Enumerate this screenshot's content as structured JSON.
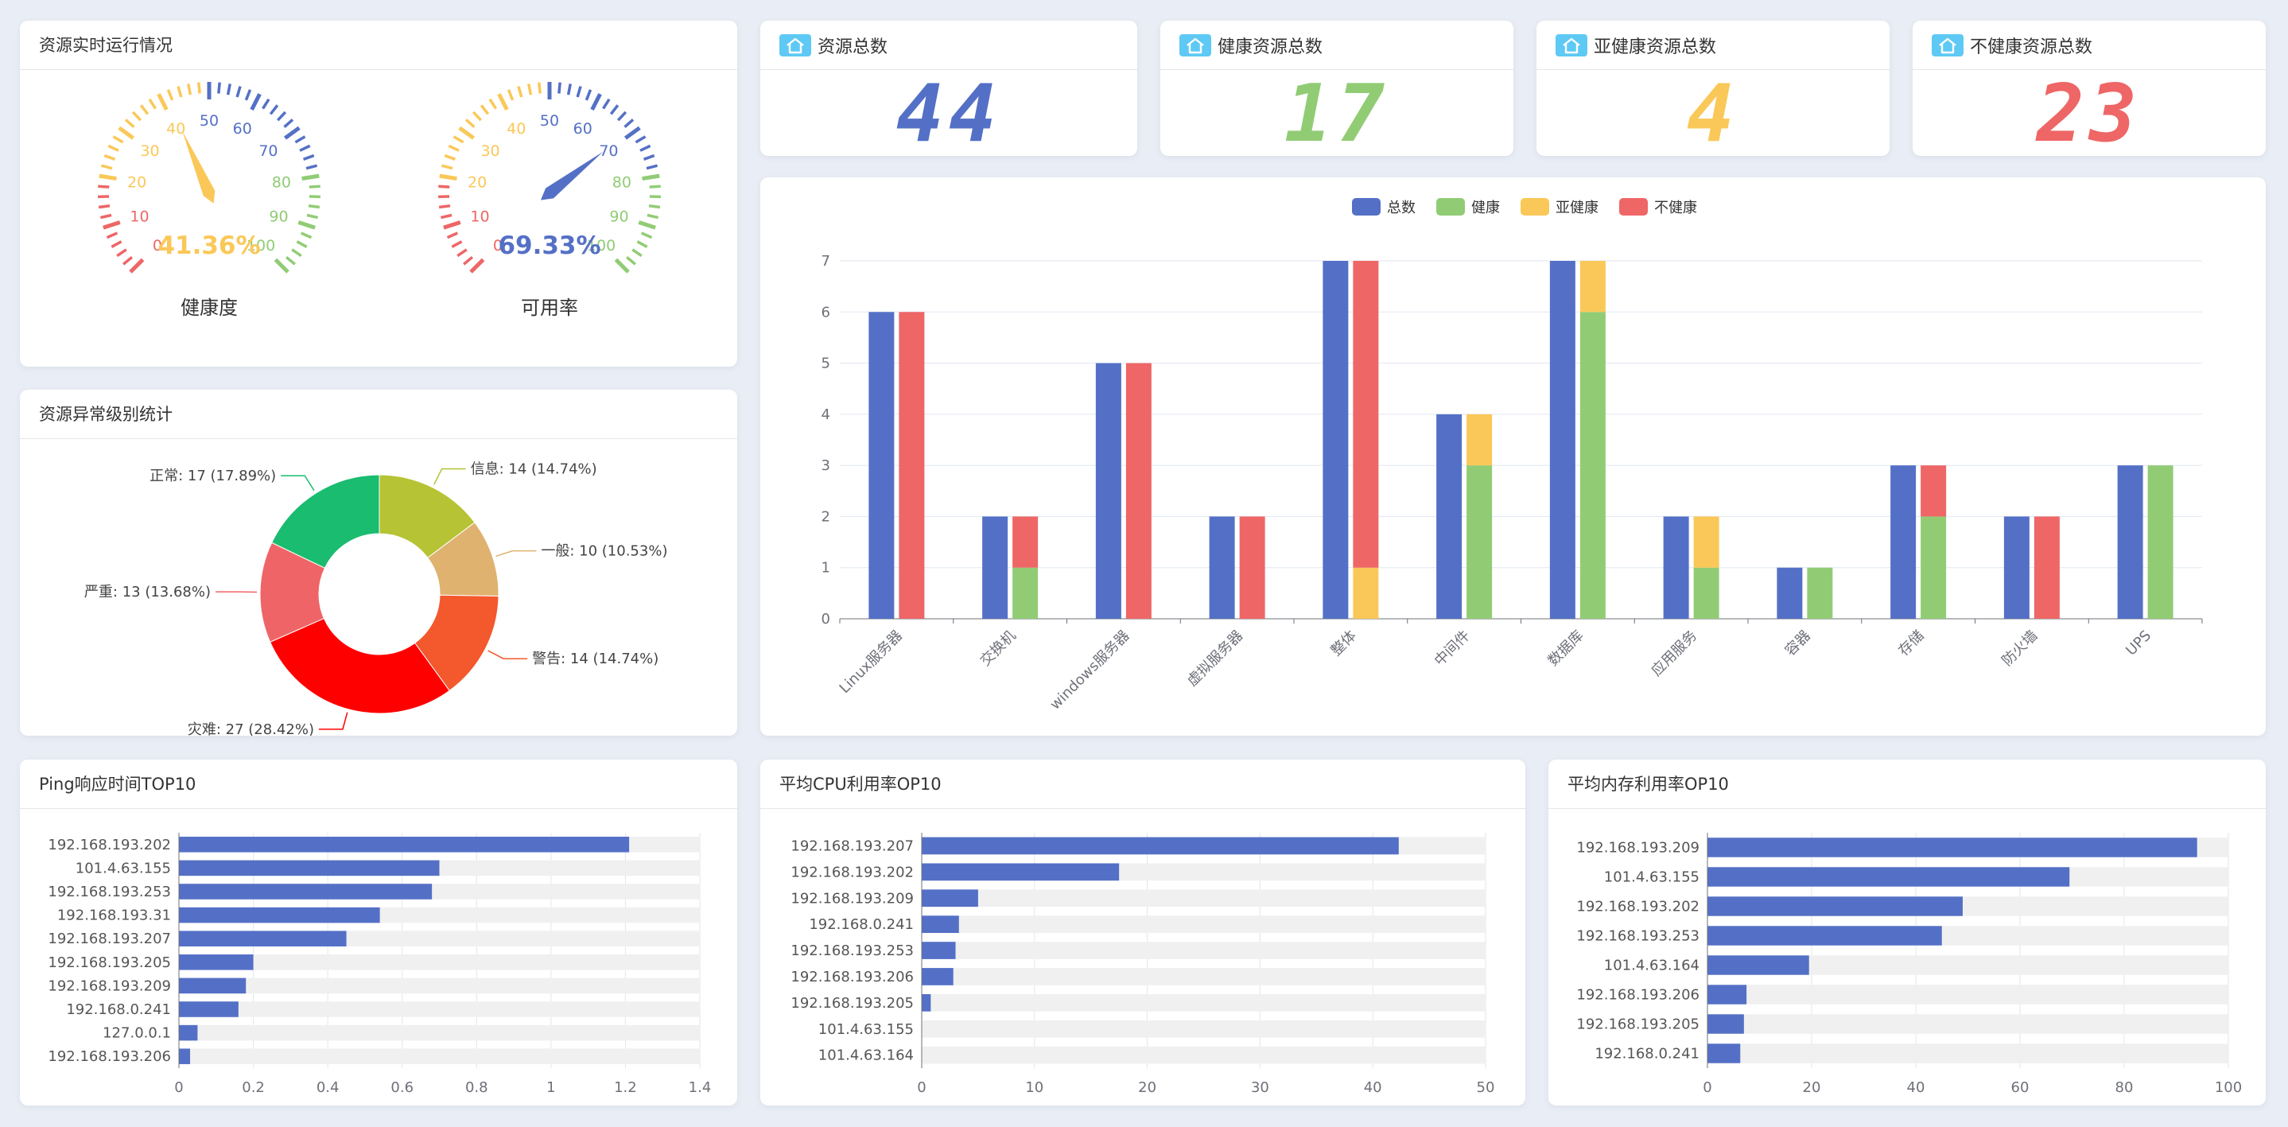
{
  "panels": {
    "realtime_title": "资源实时运行情况",
    "level_title": "资源异常级别统计",
    "ping_title": "Ping响应时间TOP10",
    "cpu_title": "平均CPU利用率OP10",
    "mem_title": "平均内存利用率OP10"
  },
  "stats": [
    {
      "label": "资源总数",
      "value": "44",
      "color": "#5470c6"
    },
    {
      "label": "健康资源总数",
      "value": "17",
      "color": "#91cc75"
    },
    {
      "label": "亚健康资源总数",
      "value": "4",
      "color": "#fac858"
    },
    {
      "label": "不健康资源总数",
      "value": "23",
      "color": "#ee6666"
    }
  ],
  "gauges": [
    {
      "label": "健康度",
      "value": 41.36,
      "display": "41.36%",
      "color": "#fac858"
    },
    {
      "label": "可用率",
      "value": 69.33,
      "display": "69.33%",
      "color": "#5470c6"
    }
  ],
  "gauge_ticks": [
    "0",
    "10",
    "20",
    "30",
    "40",
    "50",
    "60",
    "70",
    "80",
    "90",
    "100"
  ],
  "colors": {
    "blue": "#5470c6",
    "green": "#91cc75",
    "yellow": "#fac858",
    "red": "#ee6666",
    "track": "#f0f0f0"
  },
  "chart_data": [
    {
      "type": "pie",
      "title": "资源异常级别统计",
      "slices": [
        {
          "name": "信息",
          "value": 14,
          "label": "信息: 14 (14.74%)",
          "color": "#b5c334"
        },
        {
          "name": "一般",
          "value": 10,
          "label": "一般: 10 (10.53%)",
          "color": "#e0b26f"
        },
        {
          "name": "警告",
          "value": 14,
          "label": "警告: 14 (14.74%)",
          "color": "#f4582d"
        },
        {
          "name": "灾难",
          "value": 27,
          "label": "灾难: 27 (28.42%)",
          "color": "#ff0000"
        },
        {
          "name": "严重",
          "value": 13,
          "label": "严重: 13 (13.68%)",
          "color": "#ef6567"
        },
        {
          "name": "正常",
          "value": 17,
          "label": "正常: 17 (17.89%)",
          "color": "#1abc6f"
        }
      ]
    },
    {
      "type": "bar",
      "categories": [
        "Linux服务器",
        "交换机",
        "windows服务器",
        "虚拟服务器",
        "整体",
        "中间件",
        "数据库",
        "应用服务",
        "容器",
        "存储",
        "防火墙",
        "UPS"
      ],
      "legend": [
        "总数",
        "健康",
        "亚健康",
        "不健康"
      ],
      "series": [
        {
          "name": "总数",
          "values": [
            6,
            2,
            5,
            2,
            7,
            4,
            7,
            2,
            1,
            3,
            2,
            3
          ]
        },
        {
          "name": "健康",
          "values": [
            0,
            1,
            0,
            0,
            0,
            3,
            6,
            1,
            1,
            2,
            0,
            3
          ]
        },
        {
          "name": "亚健康",
          "values": [
            0,
            0,
            0,
            0,
            1,
            1,
            1,
            1,
            0,
            0,
            0,
            0
          ]
        },
        {
          "name": "不健康",
          "values": [
            6,
            1,
            5,
            2,
            6,
            0,
            0,
            0,
            0,
            1,
            2,
            0
          ]
        }
      ],
      "ylim": [
        0,
        7
      ],
      "yticks": [
        "0",
        "1",
        "2",
        "3",
        "4",
        "5",
        "6",
        "7"
      ]
    },
    {
      "type": "bar",
      "orientation": "horizontal",
      "title": "Ping响应时间TOP10",
      "categories": [
        "192.168.193.202",
        "101.4.63.155",
        "192.168.193.253",
        "192.168.193.31",
        "192.168.193.207",
        "192.168.193.205",
        "192.168.193.209",
        "192.168.0.241",
        "127.0.0.1",
        "192.168.193.206"
      ],
      "values": [
        1.21,
        0.7,
        0.68,
        0.54,
        0.45,
        0.2,
        0.18,
        0.16,
        0.05,
        0.03
      ],
      "xlim": [
        0,
        1.4
      ],
      "xticks": [
        "0",
        "0.2",
        "0.4",
        "0.6",
        "0.8",
        "1",
        "1.2",
        "1.4"
      ]
    },
    {
      "type": "bar",
      "orientation": "horizontal",
      "title": "平均CPU利用率OP10",
      "categories": [
        "192.168.193.207",
        "192.168.193.202",
        "192.168.193.209",
        "192.168.0.241",
        "192.168.193.253",
        "192.168.193.206",
        "192.168.193.205",
        "101.4.63.155",
        "101.4.63.164"
      ],
      "values": [
        42.3,
        17.5,
        5.0,
        3.3,
        3.0,
        2.8,
        0.8,
        0,
        0
      ],
      "xlim": [
        0,
        50
      ],
      "xticks": [
        "0",
        "10",
        "20",
        "30",
        "40",
        "50"
      ]
    },
    {
      "type": "bar",
      "orientation": "horizontal",
      "title": "平均内存利用率OP10",
      "categories": [
        "192.168.193.209",
        "101.4.63.155",
        "192.168.193.202",
        "192.168.193.253",
        "101.4.63.164",
        "192.168.193.206",
        "192.168.193.205",
        "192.168.0.241"
      ],
      "values": [
        94,
        69.5,
        49,
        45,
        19.5,
        7.5,
        7,
        6.3
      ],
      "xlim": [
        0,
        100
      ],
      "xticks": [
        "0",
        "20",
        "40",
        "60",
        "80",
        "100"
      ]
    }
  ]
}
